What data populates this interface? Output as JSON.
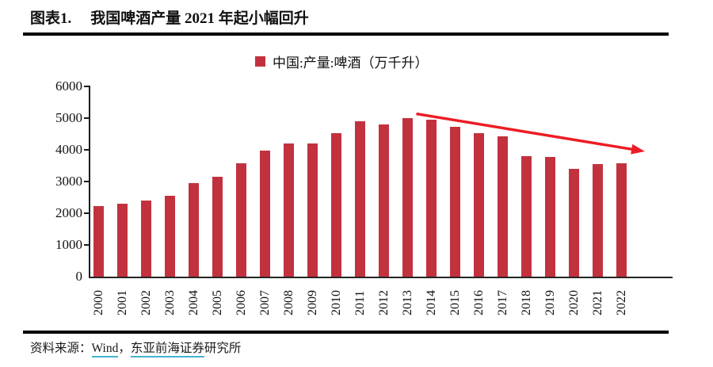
{
  "header": {
    "figure_label": "图表1.",
    "title": "我国啤酒产量 2021 年起小幅回升"
  },
  "legend": {
    "label": "中国:产量:啤酒（万千升）"
  },
  "chart_data": {
    "type": "bar",
    "title": "中国:产量:啤酒（万千升）",
    "categories": [
      "2000",
      "2001",
      "2002",
      "2003",
      "2004",
      "2005",
      "2006",
      "2007",
      "2008",
      "2009",
      "2010",
      "2011",
      "2012",
      "2013",
      "2014",
      "2015",
      "2016",
      "2017",
      "2018",
      "2019",
      "2020",
      "2021",
      "2022"
    ],
    "values": [
      2230,
      2300,
      2400,
      2550,
      2950,
      3140,
      3580,
      3980,
      4190,
      4210,
      4530,
      4890,
      4810,
      5010,
      4950,
      4720,
      4520,
      4420,
      3810,
      3780,
      3410,
      3560,
      3570
    ],
    "xlabel": "",
    "ylabel": "",
    "ylim": [
      0,
      6000
    ],
    "yticks": [
      0,
      1000,
      2000,
      3000,
      4000,
      5000,
      6000
    ],
    "grid": false,
    "legend_position": "top-center",
    "bar_color": "#c2323e",
    "annotation": {
      "type": "trend-arrow",
      "from_category": "2013",
      "to_category": "2022",
      "direction": "down-right",
      "color": "#ed1c24"
    }
  },
  "footer": {
    "prefix": "资料来源：",
    "wind": "Wind",
    "separator": "，",
    "institution": "东亚前海证券",
    "suffix": "研究所",
    "underline_color": "#45b3cb"
  }
}
